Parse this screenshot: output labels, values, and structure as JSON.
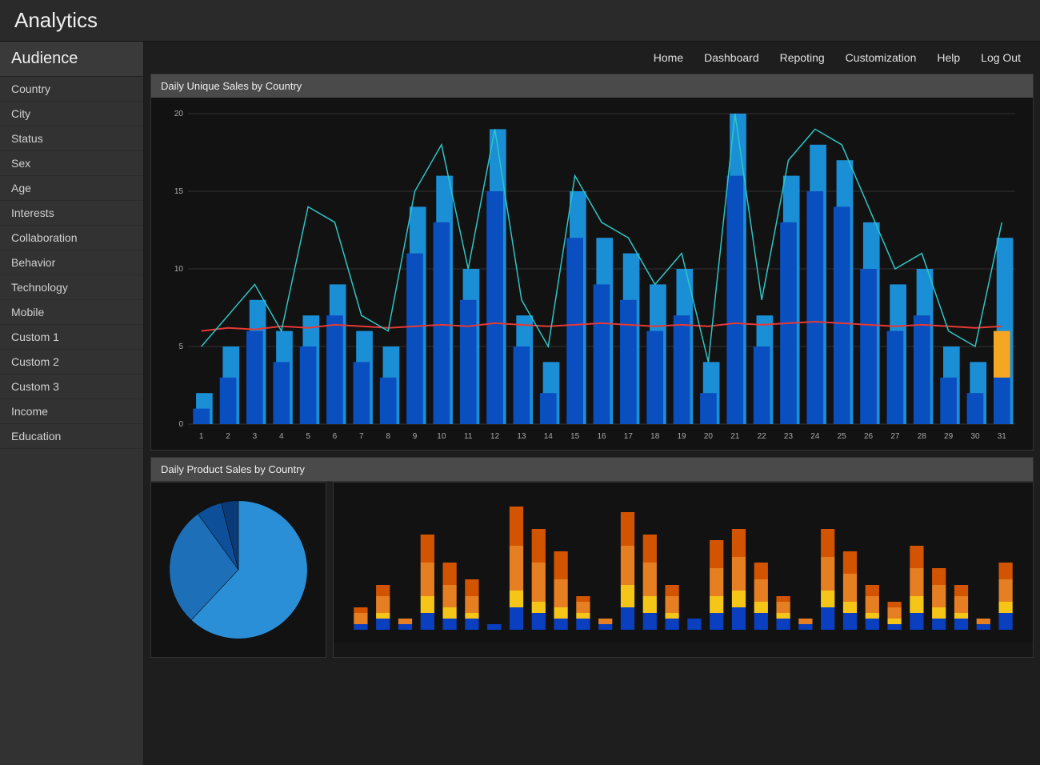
{
  "app": {
    "title": "Analytics"
  },
  "sidebar": {
    "header": "Audience",
    "items": [
      "Country",
      "City",
      "Status",
      "Sex",
      "Age",
      "Interests",
      "Collaboration",
      "Behavior",
      "Technology",
      "Mobile",
      "Custom 1",
      "Custom 2",
      "Custom 3",
      "Income",
      "Education"
    ]
  },
  "nav": {
    "items": [
      "Home",
      "Dashboard",
      "Repoting",
      "Customization",
      "Help",
      "Log Out"
    ]
  },
  "main_chart": {
    "title": "Daily Unique Sales by Country",
    "type": "bar+line",
    "background_color": "#121212",
    "grid_color": "#333333",
    "axis_color": "#888888",
    "ylim": [
      0,
      20
    ],
    "yticks": [
      0,
      5,
      10,
      15,
      20
    ],
    "x_categories": [
      1,
      2,
      3,
      4,
      5,
      6,
      7,
      8,
      9,
      10,
      11,
      12,
      13,
      14,
      15,
      16,
      17,
      18,
      19,
      20,
      21,
      22,
      23,
      24,
      25,
      26,
      27,
      28,
      29,
      30,
      31
    ],
    "bars_back": [
      2,
      5,
      8,
      6,
      7,
      9,
      6,
      5,
      14,
      16,
      10,
      19,
      7,
      4,
      15,
      12,
      11,
      9,
      10,
      4,
      20,
      7,
      16,
      18,
      17,
      13,
      9,
      10,
      5,
      4,
      12
    ],
    "bars_front": [
      1,
      3,
      6,
      4,
      5,
      7,
      4,
      3,
      11,
      13,
      8,
      15,
      5,
      2,
      12,
      9,
      8,
      6,
      7,
      2,
      16,
      5,
      13,
      15,
      14,
      10,
      6,
      7,
      3,
      2,
      6
    ],
    "bars_back_color": "#1b8fd6",
    "bars_front_color": "#0a4fbf",
    "highlight_index": 30,
    "highlight_top_color": "#f5a623",
    "highlight_top_ratio": 0.5,
    "trend_line_color": "#e53935",
    "trend_line_values": [
      6,
      6.2,
      6.1,
      6.3,
      6.2,
      6.4,
      6.3,
      6.2,
      6.3,
      6.4,
      6.3,
      6.5,
      6.4,
      6.3,
      6.4,
      6.5,
      6.4,
      6.3,
      6.4,
      6.3,
      6.5,
      6.4,
      6.5,
      6.6,
      6.5,
      6.4,
      6.3,
      6.4,
      6.3,
      6.2,
      6.3
    ],
    "series_line_color": "#2ec4c4",
    "series_line_values": [
      5,
      7,
      9,
      6,
      14,
      13,
      7,
      6,
      15,
      18,
      10,
      19,
      8,
      5,
      16,
      13,
      12,
      9,
      11,
      4,
      20,
      8,
      17,
      19,
      18,
      14,
      10,
      11,
      6,
      5,
      13
    ],
    "bar_width": 0.62,
    "label_fontsize": 10
  },
  "lower_section": {
    "title": "Daily Product Sales by Country"
  },
  "pie_chart": {
    "type": "pie",
    "slices": [
      {
        "value": 62,
        "color": "#2b8fd8"
      },
      {
        "value": 28,
        "color": "#1d6fb8"
      },
      {
        "value": 6,
        "color": "#0d4f98"
      },
      {
        "value": 4,
        "color": "#0a3b78"
      }
    ],
    "background_color": "#121212",
    "radius": 80
  },
  "stack_chart": {
    "type": "stacked-bar",
    "ylim": [
      0,
      24
    ],
    "categories_count": 30,
    "segment_colors": [
      "#0a3fbf",
      "#f5c518",
      "#e67e22",
      "#d35400"
    ],
    "stacks": [
      [
        1,
        0,
        2,
        1
      ],
      [
        2,
        1,
        3,
        2
      ],
      [
        1,
        0,
        1,
        0
      ],
      [
        3,
        3,
        6,
        5
      ],
      [
        2,
        2,
        4,
        4
      ],
      [
        2,
        1,
        3,
        3
      ],
      [
        1,
        0,
        0,
        0
      ],
      [
        4,
        3,
        8,
        7
      ],
      [
        3,
        2,
        7,
        6
      ],
      [
        2,
        2,
        5,
        5
      ],
      [
        2,
        1,
        2,
        1
      ],
      [
        1,
        0,
        1,
        0
      ],
      [
        4,
        4,
        7,
        6
      ],
      [
        3,
        3,
        6,
        5
      ],
      [
        2,
        1,
        3,
        2
      ],
      [
        2,
        0,
        0,
        0
      ],
      [
        3,
        3,
        5,
        5
      ],
      [
        4,
        3,
        6,
        5
      ],
      [
        3,
        2,
        4,
        3
      ],
      [
        2,
        1,
        2,
        1
      ],
      [
        1,
        0,
        1,
        0
      ],
      [
        4,
        3,
        6,
        5
      ],
      [
        3,
        2,
        5,
        4
      ],
      [
        2,
        1,
        3,
        2
      ],
      [
        1,
        1,
        2,
        1
      ],
      [
        3,
        3,
        5,
        4
      ],
      [
        2,
        2,
        4,
        3
      ],
      [
        2,
        1,
        3,
        2
      ],
      [
        1,
        0,
        1,
        0
      ],
      [
        3,
        2,
        4,
        3
      ]
    ],
    "bar_width": 0.62,
    "background_color": "#121212"
  }
}
